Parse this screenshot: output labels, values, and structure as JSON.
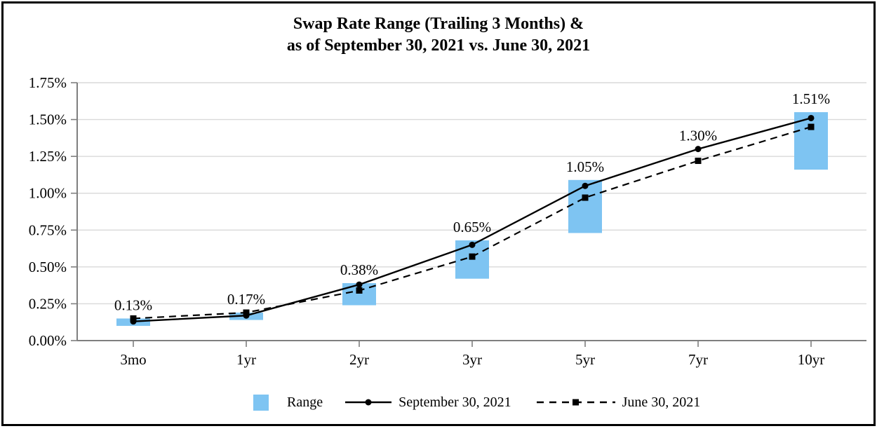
{
  "chart_data": {
    "type": "bar+line combo",
    "title_line1": "Swap Rate Range (Trailing 3 Months) &",
    "title_line2": "as of September 30, 2021 vs. June 30, 2021",
    "categories": [
      "3mo",
      "1yr",
      "2yr",
      "3yr",
      "5yr",
      "7yr",
      "10yr"
    ],
    "y_ticks": [
      "1.75%",
      "1.50%",
      "1.25%",
      "1.00%",
      "0.75%",
      "0.50%",
      "0.25%",
      "0.00%"
    ],
    "ylim": [
      0,
      1.75
    ],
    "grid": "horizontal",
    "legend_position": "bottom",
    "range_label": "Range",
    "range_bars": [
      {
        "category": "3mo",
        "low": 0.1,
        "high": 0.15
      },
      {
        "category": "1yr",
        "low": 0.14,
        "high": 0.19
      },
      {
        "category": "2yr",
        "low": 0.24,
        "high": 0.39
      },
      {
        "category": "3yr",
        "low": 0.42,
        "high": 0.68
      },
      {
        "category": "5yr",
        "low": 0.73,
        "high": 1.09
      },
      null,
      {
        "category": "10yr",
        "low": 1.16,
        "high": 1.55
      }
    ],
    "series": [
      {
        "name": "September 30, 2021",
        "line_style": "solid",
        "marker": "circle",
        "values": [
          0.13,
          0.17,
          0.38,
          0.65,
          1.05,
          1.3,
          1.51
        ],
        "point_labels": [
          "0.13%",
          "0.17%",
          "0.38%",
          "0.65%",
          "1.05%",
          "1.30%",
          "1.51%"
        ]
      },
      {
        "name": "June 30, 2021",
        "line_style": "dashed",
        "marker": "square",
        "values": [
          0.15,
          0.19,
          0.34,
          0.57,
          0.97,
          1.22,
          1.45
        ],
        "point_labels": []
      }
    ],
    "colors": {
      "range_fill": "#7EC4F2",
      "line": "#000000",
      "gridline": "#D9D9D9",
      "axis": "#7F7F7F",
      "text": "#000000"
    }
  }
}
